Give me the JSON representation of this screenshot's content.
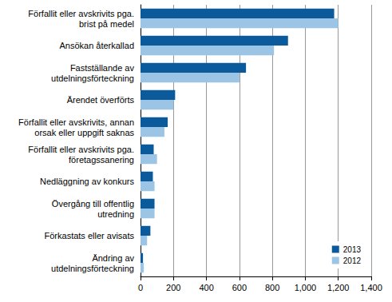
{
  "chart_data": {
    "type": "bar",
    "orientation": "horizontal",
    "categories": [
      "Förfallit eller avskrivits pga.\nbrist på medel",
      "Ansökan återkallad",
      "Fastställande av\nutdelningsförteckning",
      "Ärendet överförts",
      "Förfallit eller avskrivits, annan\norsak eller uppgift saknas",
      "Förfallit eller avskrivits pga.\nföretagssanering",
      "Nedläggning av konkurs",
      "Övergång till offentlig\nutredning",
      "Förkastats eller avisats",
      "Ändring av\nutdelningsförteckning"
    ],
    "series": [
      {
        "name": "2013",
        "color": "#0b5a9c",
        "values": [
          1175,
          895,
          640,
          210,
          165,
          80,
          75,
          85,
          60,
          15
        ]
      },
      {
        "name": "2012",
        "color": "#9cc4e4",
        "values": [
          1200,
          810,
          600,
          200,
          145,
          100,
          85,
          85,
          40,
          20
        ]
      }
    ],
    "xlim": [
      0,
      1400
    ],
    "xticks": [
      0,
      200,
      400,
      600,
      800,
      1000,
      1200,
      1400
    ],
    "grid": true,
    "legend": "lower right"
  }
}
